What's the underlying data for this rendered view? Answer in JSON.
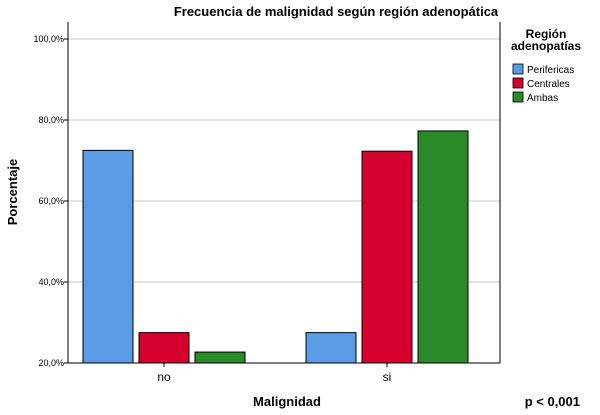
{
  "chart_data": {
    "type": "bar",
    "title": "Frecuencia de malignidad según región adenopática",
    "xlabel": "Malignidad",
    "ylabel": "Porcentaje",
    "categories": [
      "no",
      "si"
    ],
    "series": [
      {
        "name": "Perifericas",
        "color": "#5b9be6",
        "values": [
          72.5,
          27.5
        ]
      },
      {
        "name": "Centrales",
        "color": "#d6002f",
        "values": [
          27.5,
          72.3
        ]
      },
      {
        "name": "Ambas",
        "color": "#2a8a2a",
        "values": [
          22.7,
          77.3
        ]
      }
    ],
    "ylim": [
      20,
      100
    ],
    "yticks": [
      20,
      40,
      60,
      80,
      100
    ],
    "ytick_labels": [
      "20,0%",
      "40,0%",
      "60,0%",
      "80,0%",
      "100,0%"
    ],
    "grid": true,
    "legend": {
      "title_lines": [
        "Región",
        "adenopatías"
      ],
      "placement": "right"
    },
    "annotation": "p < 0,001"
  }
}
